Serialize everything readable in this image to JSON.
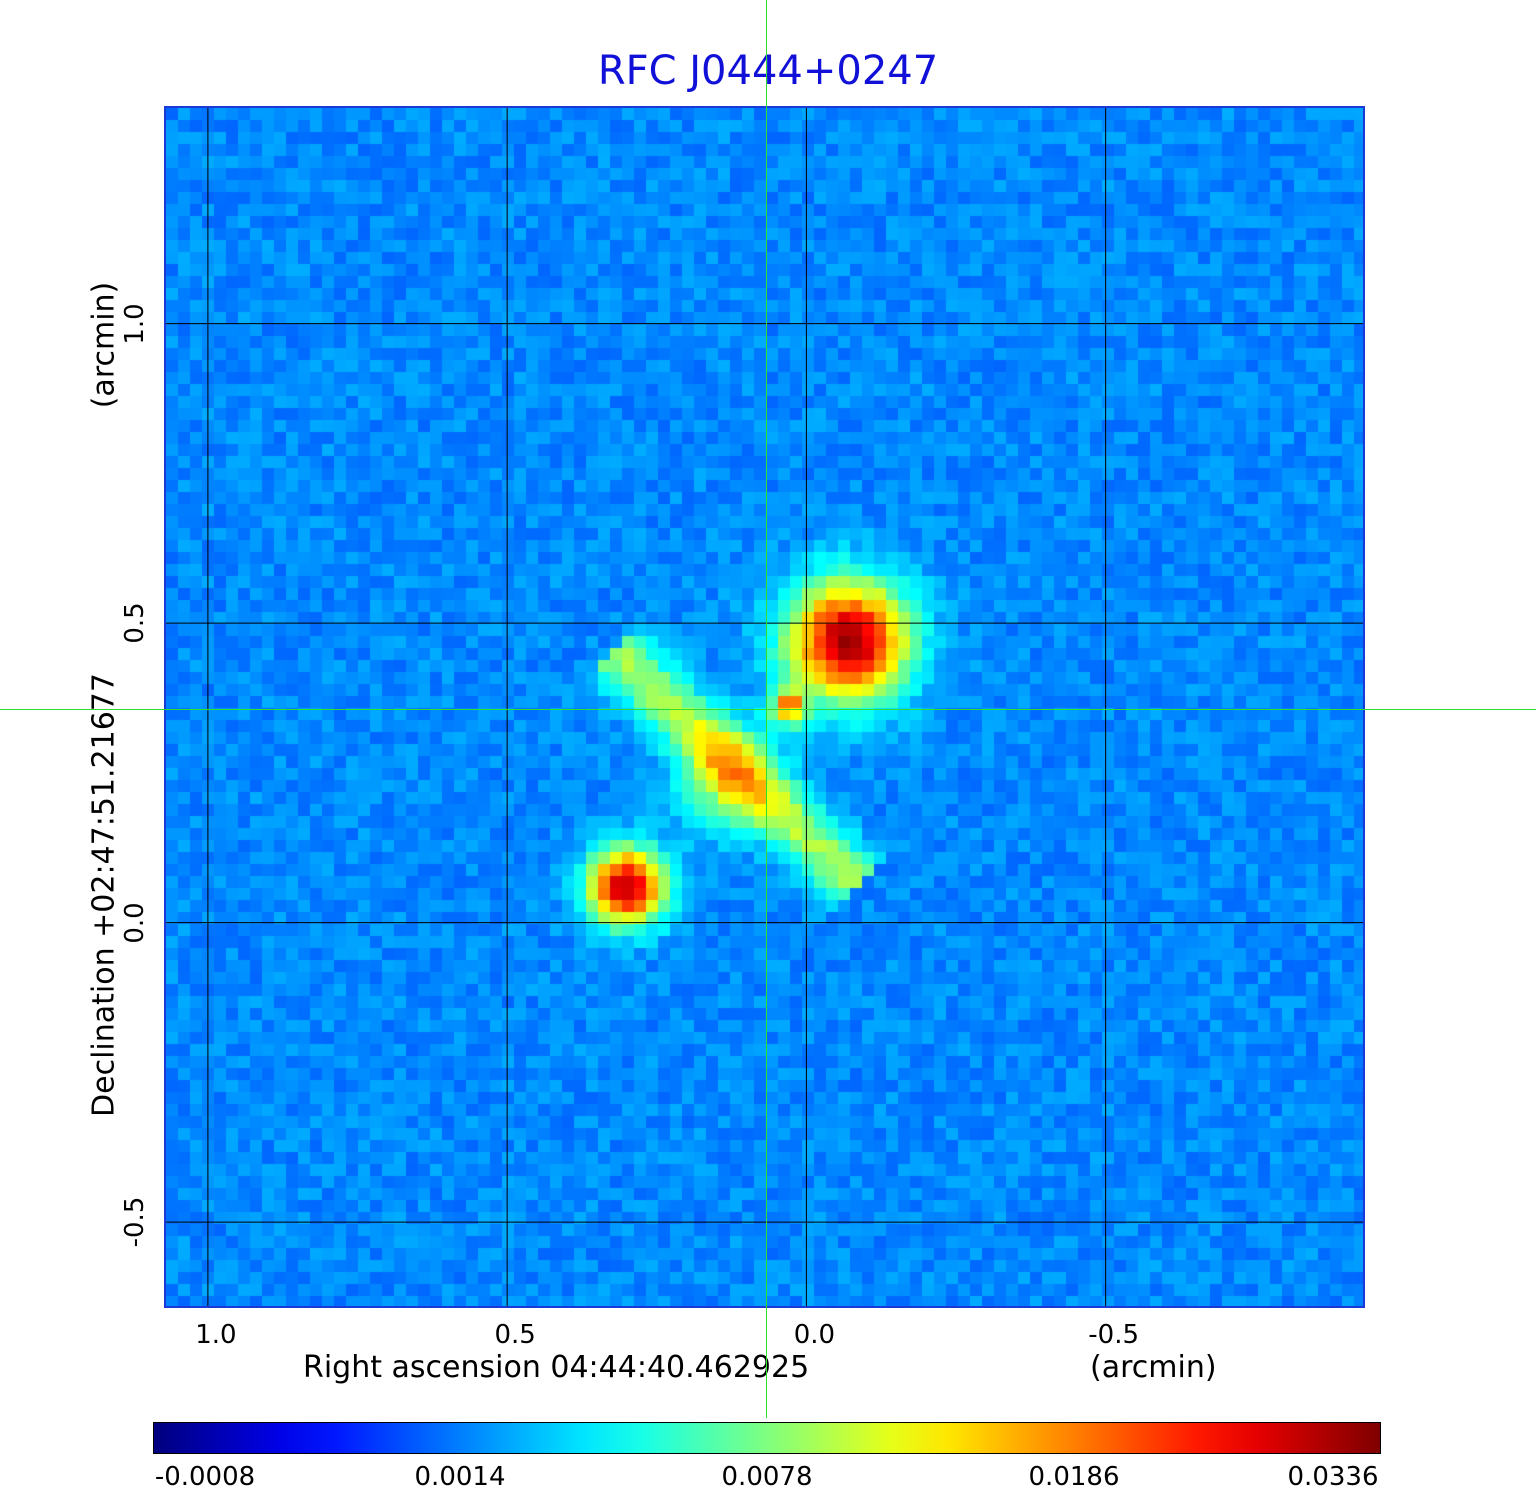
{
  "chart_data": {
    "type": "heatmap",
    "title": "RFC J0444+0247",
    "xlabel": "Right ascension  04:44:40.462925",
    "xunit": "(arcmin)",
    "ylabel": "Declination  +02:47:51.21677",
    "yunit": "(arcmin)",
    "x_range_arcmin": [
      1.07,
      -0.93
    ],
    "y_range_arcmin": [
      -0.64,
      1.36
    ],
    "x_ticks": [
      "1.0",
      "0.5",
      "0.0",
      "-0.5"
    ],
    "x_tick_values": [
      1.0,
      0.5,
      0.0,
      -0.5
    ],
    "y_ticks": [
      "1.0",
      "0.5",
      "0.0",
      "-0.5"
    ],
    "y_tick_values": [
      1.0,
      0.5,
      0.0,
      -0.5
    ],
    "grid": true,
    "colormap": "jet",
    "colorbar_ticks": [
      "-0.0008",
      "0.0014",
      "0.0078",
      "0.0186",
      "0.0336"
    ],
    "colorbar_ticks_range": [
      -0.0008,
      0.0336
    ],
    "crosshair_arcmin": [
      0.03,
      0.35
    ],
    "components": [
      {
        "x": -0.07,
        "y": 0.47,
        "peak": 0.0336
      },
      {
        "x": 0.3,
        "y": 0.06,
        "peak": 0.03
      },
      {
        "x": 0.03,
        "y": 0.36,
        "peak": 0.022
      },
      {
        "x": 0.13,
        "y": 0.24,
        "peak": 0.009
      }
    ]
  },
  "colors": {
    "title": "#1010d8",
    "crosshair": "#2fe02f",
    "grid": "#000000"
  }
}
